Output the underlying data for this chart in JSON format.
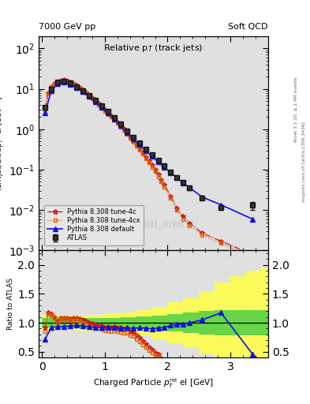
{
  "title_left": "7000 GeV pp",
  "title_right": "Soft QCD",
  "plot_title": "Relative p$_{T}$ (track jets)",
  "xlabel": "Charged Particle $\\mathit{p}^{\\rm rel}_{T}$ el [GeV]",
  "ylabel_main": "(1/Njet)dN/dp$^{\\rm rel}_{T}$ el [GeV$^{-1}$]",
  "ylabel_ratio": "Ratio to ATLAS",
  "watermark": "ATLAS_2011_I919017",
  "right_label1": "Rivet 3.1.10; ≥ 2.4M events",
  "right_label2": "mcplots.cern.ch [arXiv:1306.3436]",
  "atlas_x": [
    0.05,
    0.15,
    0.25,
    0.35,
    0.45,
    0.55,
    0.65,
    0.75,
    0.85,
    0.95,
    1.05,
    1.15,
    1.25,
    1.35,
    1.45,
    1.55,
    1.65,
    1.75,
    1.85,
    1.95,
    2.05,
    2.15,
    2.25,
    2.35,
    2.55,
    2.85,
    3.35
  ],
  "atlas_y": [
    3.5,
    10.0,
    14.5,
    15.5,
    14.0,
    11.5,
    9.0,
    7.0,
    5.2,
    3.8,
    2.75,
    1.95,
    1.35,
    0.92,
    0.64,
    0.46,
    0.33,
    0.24,
    0.17,
    0.123,
    0.089,
    0.065,
    0.048,
    0.036,
    0.02,
    0.0115,
    0.013
  ],
  "atlas_yerr": [
    0.35,
    0.5,
    0.55,
    0.55,
    0.5,
    0.45,
    0.38,
    0.28,
    0.22,
    0.17,
    0.13,
    0.1,
    0.075,
    0.055,
    0.038,
    0.028,
    0.019,
    0.014,
    0.01,
    0.008,
    0.006,
    0.0045,
    0.0035,
    0.0028,
    0.0018,
    0.0013,
    0.003
  ],
  "py_def_x": [
    0.05,
    0.15,
    0.25,
    0.35,
    0.45,
    0.55,
    0.65,
    0.75,
    0.85,
    0.95,
    1.05,
    1.15,
    1.25,
    1.35,
    1.45,
    1.55,
    1.65,
    1.75,
    1.85,
    1.95,
    2.05,
    2.15,
    2.25,
    2.35,
    2.55,
    2.85,
    3.35
  ],
  "py_def_y": [
    2.5,
    9.2,
    13.5,
    14.5,
    13.2,
    11.0,
    8.5,
    6.5,
    4.8,
    3.5,
    2.52,
    1.8,
    1.22,
    0.84,
    0.58,
    0.42,
    0.3,
    0.215,
    0.155,
    0.113,
    0.085,
    0.063,
    0.047,
    0.036,
    0.021,
    0.0135,
    0.006
  ],
  "py_4c_x": [
    0.05,
    0.1,
    0.15,
    0.2,
    0.25,
    0.3,
    0.35,
    0.4,
    0.45,
    0.5,
    0.55,
    0.6,
    0.65,
    0.7,
    0.75,
    0.8,
    0.85,
    0.9,
    0.95,
    1.0,
    1.05,
    1.1,
    1.15,
    1.2,
    1.25,
    1.3,
    1.35,
    1.4,
    1.45,
    1.5,
    1.55,
    1.6,
    1.65,
    1.7,
    1.75,
    1.8,
    1.85,
    1.9,
    1.95,
    2.05,
    2.15,
    2.25,
    2.35,
    2.55,
    2.85,
    3.35
  ],
  "py_4c_y": [
    3.2,
    8.0,
    11.5,
    13.5,
    15.0,
    16.2,
    16.8,
    16.0,
    15.0,
    13.8,
    12.5,
    11.0,
    9.5,
    8.2,
    7.0,
    6.0,
    5.1,
    4.3,
    3.6,
    3.0,
    2.55,
    2.15,
    1.82,
    1.52,
    1.25,
    1.02,
    0.83,
    0.66,
    0.53,
    0.43,
    0.34,
    0.27,
    0.21,
    0.165,
    0.13,
    0.1,
    0.077,
    0.057,
    0.042,
    0.022,
    0.011,
    0.007,
    0.0048,
    0.0027,
    0.0017,
    0.0008
  ],
  "py_4cx_x": [
    0.05,
    0.1,
    0.15,
    0.2,
    0.25,
    0.3,
    0.35,
    0.4,
    0.45,
    0.5,
    0.55,
    0.6,
    0.65,
    0.7,
    0.75,
    0.8,
    0.85,
    0.9,
    0.95,
    1.0,
    1.05,
    1.1,
    1.15,
    1.2,
    1.25,
    1.3,
    1.35,
    1.4,
    1.45,
    1.5,
    1.55,
    1.6,
    1.65,
    1.7,
    1.75,
    1.8,
    1.85,
    1.9,
    1.95,
    2.05,
    2.15,
    2.25,
    2.35,
    2.55,
    2.85,
    3.35
  ],
  "py_4cx_y": [
    3.0,
    7.8,
    11.2,
    13.2,
    14.6,
    15.8,
    16.4,
    15.6,
    14.5,
    13.3,
    12.0,
    10.5,
    9.0,
    7.8,
    6.65,
    5.65,
    4.8,
    4.05,
    3.4,
    2.82,
    2.38,
    2.0,
    1.68,
    1.4,
    1.14,
    0.93,
    0.76,
    0.61,
    0.49,
    0.39,
    0.31,
    0.245,
    0.19,
    0.148,
    0.116,
    0.09,
    0.068,
    0.051,
    0.038,
    0.02,
    0.01,
    0.006,
    0.0042,
    0.0024,
    0.0015,
    0.0007
  ],
  "atlas_color": "#222222",
  "default_color": "#1111dd",
  "tune4c_color": "#cc1111",
  "tune4cx_color": "#dd6600",
  "bg_color": "#ffffff",
  "panel_bg": "#e0e0e0",
  "ylim_main": [
    0.001,
    200
  ],
  "ylim_ratio": [
    0.4,
    2.25
  ],
  "xlim": [
    -0.05,
    3.6
  ],
  "ratio_yticks": [
    0.5,
    1.0,
    1.5,
    2.0
  ],
  "atlas_band_x": [
    0.0,
    0.25,
    0.5,
    0.75,
    1.0,
    1.25,
    1.5,
    1.75,
    2.0,
    2.25,
    2.5,
    2.75,
    3.0,
    3.25,
    3.5
  ],
  "atlas_green": [
    0.08,
    0.08,
    0.08,
    0.09,
    0.09,
    0.1,
    0.11,
    0.13,
    0.15,
    0.18,
    0.2,
    0.22,
    0.22,
    0.22,
    0.22
  ],
  "atlas_yellow": [
    0.12,
    0.12,
    0.13,
    0.14,
    0.16,
    0.18,
    0.22,
    0.28,
    0.35,
    0.42,
    0.55,
    0.7,
    0.8,
    0.9,
    0.95
  ]
}
